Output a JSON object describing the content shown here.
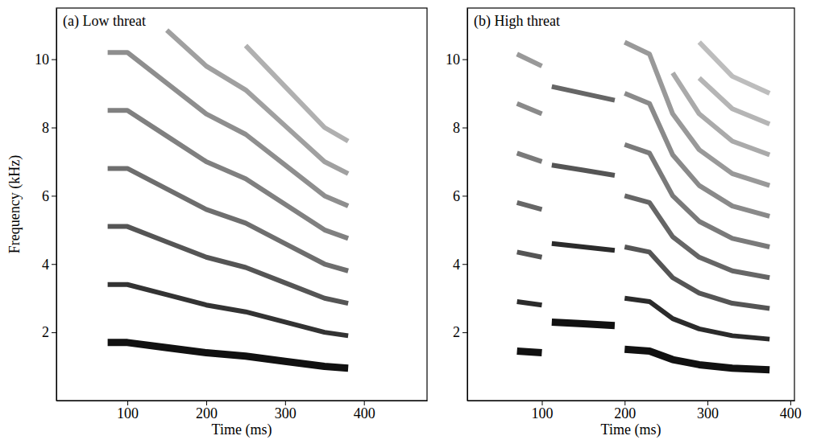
{
  "chart_data": [
    {
      "type": "line",
      "title": "(a) Low threat",
      "x_label": "Time (ms)",
      "y_label": "Frequency (kHz)",
      "xlim": [
        10,
        480
      ],
      "xticks": [
        100,
        200,
        300,
        400
      ],
      "ylim": [
        0,
        11.5
      ],
      "yticks": [
        2,
        4,
        6,
        8,
        10
      ],
      "x": [
        75,
        100,
        150,
        200,
        250,
        300,
        350,
        380
      ],
      "series": [
        {
          "color": "#111111",
          "values": [
            1.7,
            1.7,
            1.55,
            1.4,
            1.3,
            1.15,
            1.0,
            0.95
          ]
        },
        {
          "color": "#333333",
          "values": [
            3.4,
            3.4,
            3.1,
            2.8,
            2.6,
            2.3,
            2.0,
            1.9
          ]
        },
        {
          "color": "#555555",
          "values": [
            5.1,
            5.1,
            4.65,
            4.2,
            3.9,
            3.45,
            3.0,
            2.85
          ]
        },
        {
          "color": "#6e6e6e",
          "values": [
            6.8,
            6.8,
            6.2,
            5.6,
            5.2,
            4.6,
            4.0,
            3.8
          ]
        },
        {
          "color": "#808080",
          "values": [
            8.5,
            8.5,
            7.75,
            7.0,
            6.5,
            5.75,
            5.0,
            4.75
          ]
        },
        {
          "color": "#8e8e8e",
          "values": [
            10.2,
            10.2,
            9.3,
            8.4,
            7.8,
            6.9,
            6.0,
            5.7
          ]
        },
        {
          "color": "#a0a0a0",
          "values": [
            null,
            null,
            10.85,
            9.8,
            9.1,
            8.05,
            7.0,
            6.65
          ]
        },
        {
          "color": "#b0b0b0",
          "values": [
            null,
            null,
            null,
            null,
            10.4,
            9.2,
            8.0,
            7.6
          ]
        }
      ]
    },
    {
      "type": "line",
      "title": "(b) High threat",
      "x_label": "Time (ms)",
      "xlim": [
        10,
        405
      ],
      "xticks": [
        100,
        200,
        300,
        400
      ],
      "ylim": [
        0,
        11.5
      ],
      "yticks": [
        2,
        4,
        6,
        8,
        10
      ],
      "x": [
        70,
        100,
        106,
        112,
        150,
        188,
        194,
        200,
        230,
        258,
        290,
        330,
        375
      ],
      "series": [
        {
          "color": "#111111",
          "values": [
            1.45,
            1.4,
            null,
            2.3,
            2.25,
            2.2,
            null,
            1.5,
            1.45,
            1.2,
            1.05,
            0.95,
            0.9
          ]
        },
        {
          "color": "#2b2b2b",
          "values": [
            2.9,
            2.8,
            null,
            4.6,
            4.5,
            4.4,
            null,
            3.0,
            2.9,
            2.4,
            2.1,
            1.9,
            1.8
          ]
        },
        {
          "color": "#555555",
          "values": [
            4.35,
            4.2,
            null,
            6.9,
            6.75,
            6.6,
            null,
            4.5,
            4.35,
            3.6,
            3.15,
            2.85,
            2.7
          ]
        },
        {
          "color": "#666666",
          "values": [
            5.8,
            5.6,
            null,
            9.2,
            9.0,
            8.8,
            null,
            6.0,
            5.8,
            4.8,
            4.2,
            3.8,
            3.6
          ]
        },
        {
          "color": "#7a7a7a",
          "values": [
            7.25,
            7.0,
            null,
            null,
            null,
            null,
            null,
            7.5,
            7.25,
            6.0,
            5.25,
            4.75,
            4.5
          ]
        },
        {
          "color": "#8a8a8a",
          "values": [
            8.7,
            8.4,
            null,
            null,
            null,
            null,
            null,
            9.0,
            8.7,
            7.2,
            6.3,
            5.7,
            5.4
          ]
        },
        {
          "color": "#999999",
          "values": [
            10.15,
            9.8,
            null,
            null,
            null,
            null,
            null,
            10.5,
            10.15,
            8.4,
            7.35,
            6.65,
            6.3
          ]
        },
        {
          "color": "#aaaaaa",
          "values": [
            null,
            null,
            null,
            null,
            null,
            null,
            null,
            null,
            null,
            9.6,
            8.4,
            7.6,
            7.2
          ]
        },
        {
          "color": "#b5b5b5",
          "values": [
            null,
            null,
            null,
            null,
            null,
            null,
            null,
            null,
            null,
            null,
            9.45,
            8.55,
            8.1
          ]
        },
        {
          "color": "#bdbdbd",
          "values": [
            null,
            null,
            null,
            null,
            null,
            null,
            null,
            null,
            null,
            null,
            10.5,
            9.5,
            9.0
          ]
        }
      ]
    }
  ]
}
